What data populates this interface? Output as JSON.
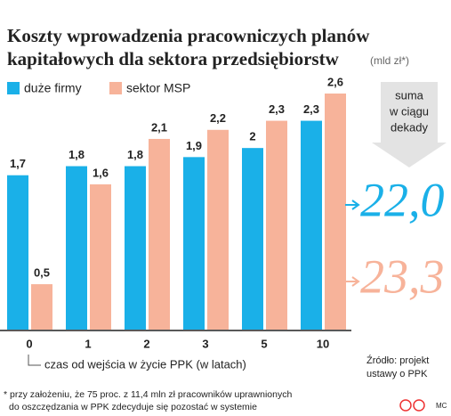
{
  "chart_data": {
    "type": "bar",
    "title_lines": [
      "Koszty wprowadzenia pracowniczych planów",
      "kapitałowych dla sektora przedsiębiorstw"
    ],
    "unit": "(mld zł*)",
    "categories": [
      "0",
      "1",
      "2",
      "3",
      "5",
      "10"
    ],
    "series": [
      {
        "name": "duże firmy",
        "color": "#1ab0e8",
        "values": [
          1.7,
          1.8,
          1.8,
          1.9,
          2,
          2.3
        ],
        "value_labels": [
          "1,7",
          "1,8",
          "1,8",
          "1,9",
          "2",
          "2,3"
        ]
      },
      {
        "name": "sektor MSP",
        "color": "#f7b39a",
        "values": [
          0.5,
          1.6,
          2.1,
          2.2,
          2.3,
          2.6
        ],
        "value_labels": [
          "0,5",
          "1,6",
          "2,1",
          "2,2",
          "2,3",
          "2,6"
        ]
      }
    ],
    "ylim": [
      0,
      2.6
    ],
    "x_label": "czas od wejścia w życie PPK (w latach)",
    "summary_lines": [
      "suma",
      "w ciągu",
      "dekady"
    ],
    "totals": [
      "22,0",
      "23,3"
    ],
    "source_lines": [
      "Źródło: projekt",
      "ustawy o PPK"
    ],
    "footnote_lines": [
      "* przy założeniu, że 75 proc. z 11,4 mln zł pracowników uprawnionych",
      "do oszczędzania w PPK zdecyduje się pozostać w systemie"
    ],
    "credit": "MC"
  }
}
